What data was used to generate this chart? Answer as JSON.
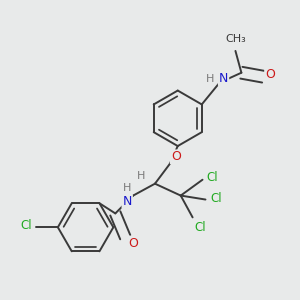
{
  "bg_color": "#e8eaea",
  "atom_colors": {
    "C": "#3a3a3a",
    "H": "#7a7a7a",
    "N": "#1a1acc",
    "O": "#cc1a1a",
    "Cl": "#22aa22"
  },
  "bond_color": "#3a3a3a",
  "bond_width": 1.4,
  "figsize": [
    3.0,
    3.0
  ],
  "dpi": 100,
  "xlim": [
    0,
    3.0
  ],
  "ylim": [
    0,
    3.0
  ]
}
